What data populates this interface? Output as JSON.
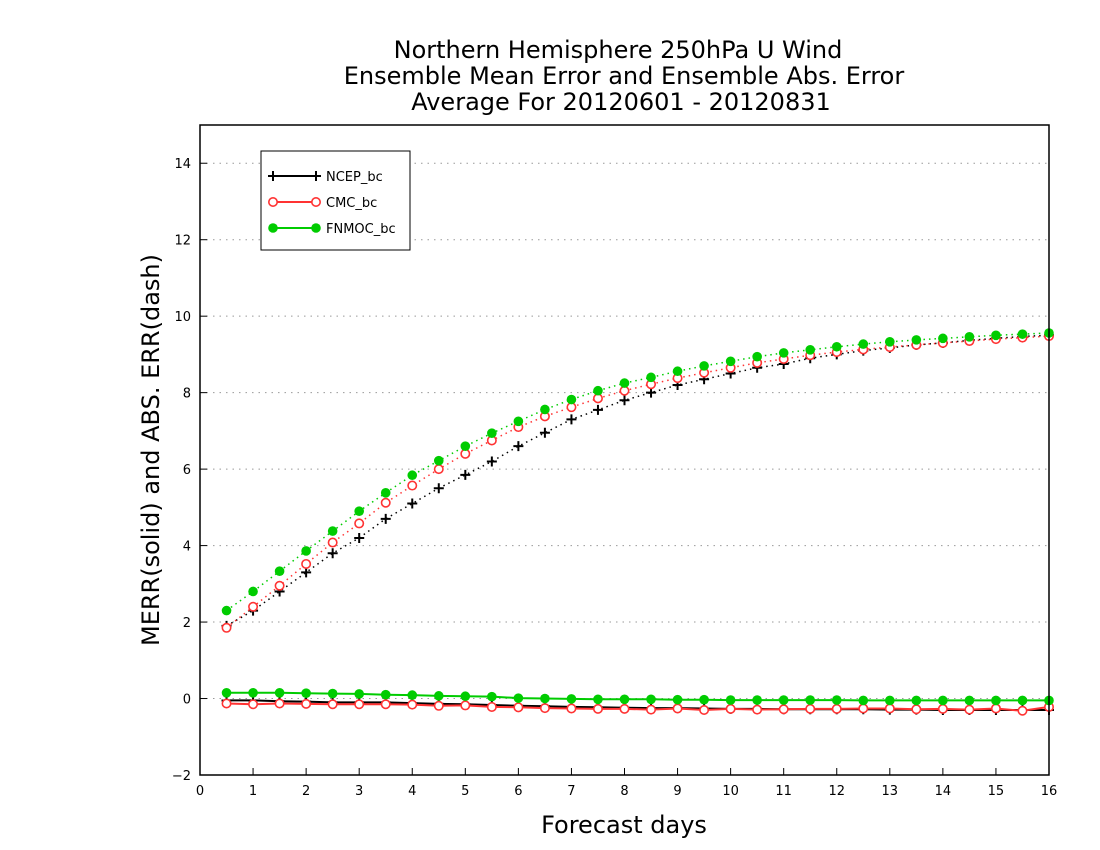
{
  "chart_data": {
    "type": "line",
    "title_lines": [
      "Northern Hemisphere 250hPa U Wind",
      "Ensemble Mean Error and Ensemble Abs. Error",
      "Average For 20120601 - 20120831"
    ],
    "xlabel": "Forecast days",
    "ylabel": "MERR(solid) and ABS. ERR(dash)",
    "xlim": [
      0,
      16
    ],
    "ylim": [
      -2,
      15
    ],
    "xticks": [
      "0",
      "1",
      "2",
      "3",
      "4",
      "5",
      "6",
      "7",
      "8",
      "9",
      "10",
      "11",
      "12",
      "13",
      "14",
      "15",
      "16"
    ],
    "yticks": [
      "−2",
      "0",
      "2",
      "4",
      "6",
      "8",
      "10",
      "12",
      "14"
    ],
    "grid": "horizontal dotted",
    "legend_position": "top-left",
    "x": [
      0.5,
      1,
      1.5,
      2,
      2.5,
      3,
      3.5,
      4,
      4.5,
      5,
      5.5,
      6,
      6.5,
      7,
      7.5,
      8,
      8.5,
      9,
      9.5,
      10,
      10.5,
      11,
      11.5,
      12,
      12.5,
      13,
      13.5,
      14,
      14.5,
      15,
      15.5,
      16
    ],
    "series": [
      {
        "name": "NCEP_bc",
        "color": "#000000",
        "marker": "plus",
        "abs_err": [
          1.9,
          2.3,
          2.8,
          3.3,
          3.8,
          4.2,
          4.7,
          5.1,
          5.5,
          5.85,
          6.2,
          6.6,
          6.95,
          7.3,
          7.55,
          7.8,
          8.0,
          8.2,
          8.35,
          8.5,
          8.65,
          8.75,
          8.9,
          9.0,
          9.1,
          9.17,
          9.25,
          9.3,
          9.37,
          9.42,
          9.47,
          9.5
        ],
        "mean_err": [
          -0.05,
          -0.05,
          -0.07,
          -0.08,
          -0.1,
          -0.1,
          -0.1,
          -0.12,
          -0.14,
          -0.15,
          -0.17,
          -0.19,
          -0.2,
          -0.22,
          -0.23,
          -0.24,
          -0.25,
          -0.25,
          -0.26,
          -0.27,
          -0.27,
          -0.28,
          -0.28,
          -0.28,
          -0.28,
          -0.29,
          -0.29,
          -0.3,
          -0.3,
          -0.3,
          -0.3,
          -0.3
        ]
      },
      {
        "name": "CMC_bc",
        "color": "#ff3333",
        "marker": "open-circle",
        "abs_err": [
          1.85,
          2.4,
          2.95,
          3.52,
          4.08,
          4.58,
          5.12,
          5.57,
          6.0,
          6.4,
          6.75,
          7.1,
          7.38,
          7.62,
          7.85,
          8.05,
          8.22,
          8.38,
          8.52,
          8.65,
          8.78,
          8.88,
          8.98,
          9.06,
          9.13,
          9.19,
          9.25,
          9.3,
          9.35,
          9.4,
          9.44,
          9.48
        ],
        "mean_err": [
          -0.13,
          -0.15,
          -0.13,
          -0.14,
          -0.15,
          -0.15,
          -0.15,
          -0.16,
          -0.19,
          -0.18,
          -0.22,
          -0.23,
          -0.25,
          -0.26,
          -0.27,
          -0.27,
          -0.29,
          -0.26,
          -0.3,
          -0.27,
          -0.29,
          -0.28,
          -0.27,
          -0.27,
          -0.26,
          -0.26,
          -0.28,
          -0.27,
          -0.29,
          -0.26,
          -0.32,
          -0.22
        ]
      },
      {
        "name": "FNMOC_bc",
        "color": "#00cc00",
        "marker": "filled-circle",
        "abs_err": [
          2.3,
          2.8,
          3.33,
          3.86,
          4.38,
          4.9,
          5.38,
          5.84,
          6.22,
          6.6,
          6.94,
          7.25,
          7.56,
          7.82,
          8.05,
          8.25,
          8.4,
          8.56,
          8.7,
          8.82,
          8.94,
          9.04,
          9.12,
          9.2,
          9.27,
          9.33,
          9.38,
          9.42,
          9.46,
          9.5,
          9.53,
          9.56
        ],
        "mean_err": [
          0.15,
          0.15,
          0.15,
          0.14,
          0.13,
          0.12,
          0.1,
          0.09,
          0.07,
          0.06,
          0.05,
          0.01,
          0.0,
          -0.01,
          -0.02,
          -0.02,
          -0.02,
          -0.03,
          -0.03,
          -0.04,
          -0.04,
          -0.04,
          -0.04,
          -0.04,
          -0.05,
          -0.05,
          -0.05,
          -0.05,
          -0.05,
          -0.05,
          -0.05,
          -0.05
        ]
      }
    ]
  }
}
